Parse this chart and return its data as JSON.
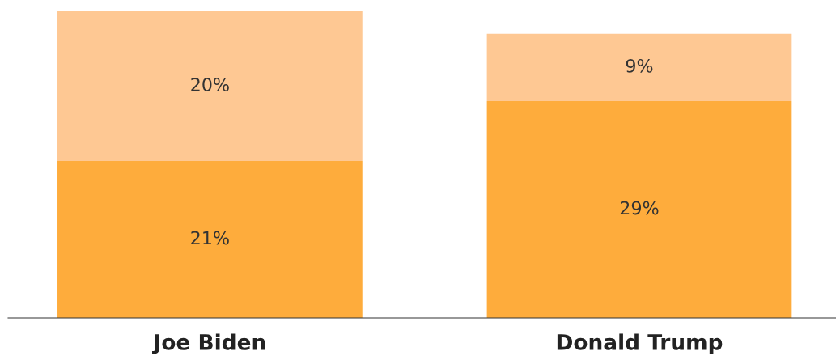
{
  "chart_data": {
    "type": "bar",
    "stacked": true,
    "categories": [
      "Joe Biden",
      "Donald Trump"
    ],
    "series": [
      {
        "color": "#feac3c",
        "values": [
          21,
          29
        ],
        "value_labels": [
          "21%",
          "29%"
        ]
      },
      {
        "color": "#fec893",
        "values": [
          20,
          9
        ],
        "value_labels": [
          "20%",
          "9%"
        ]
      }
    ]
  }
}
